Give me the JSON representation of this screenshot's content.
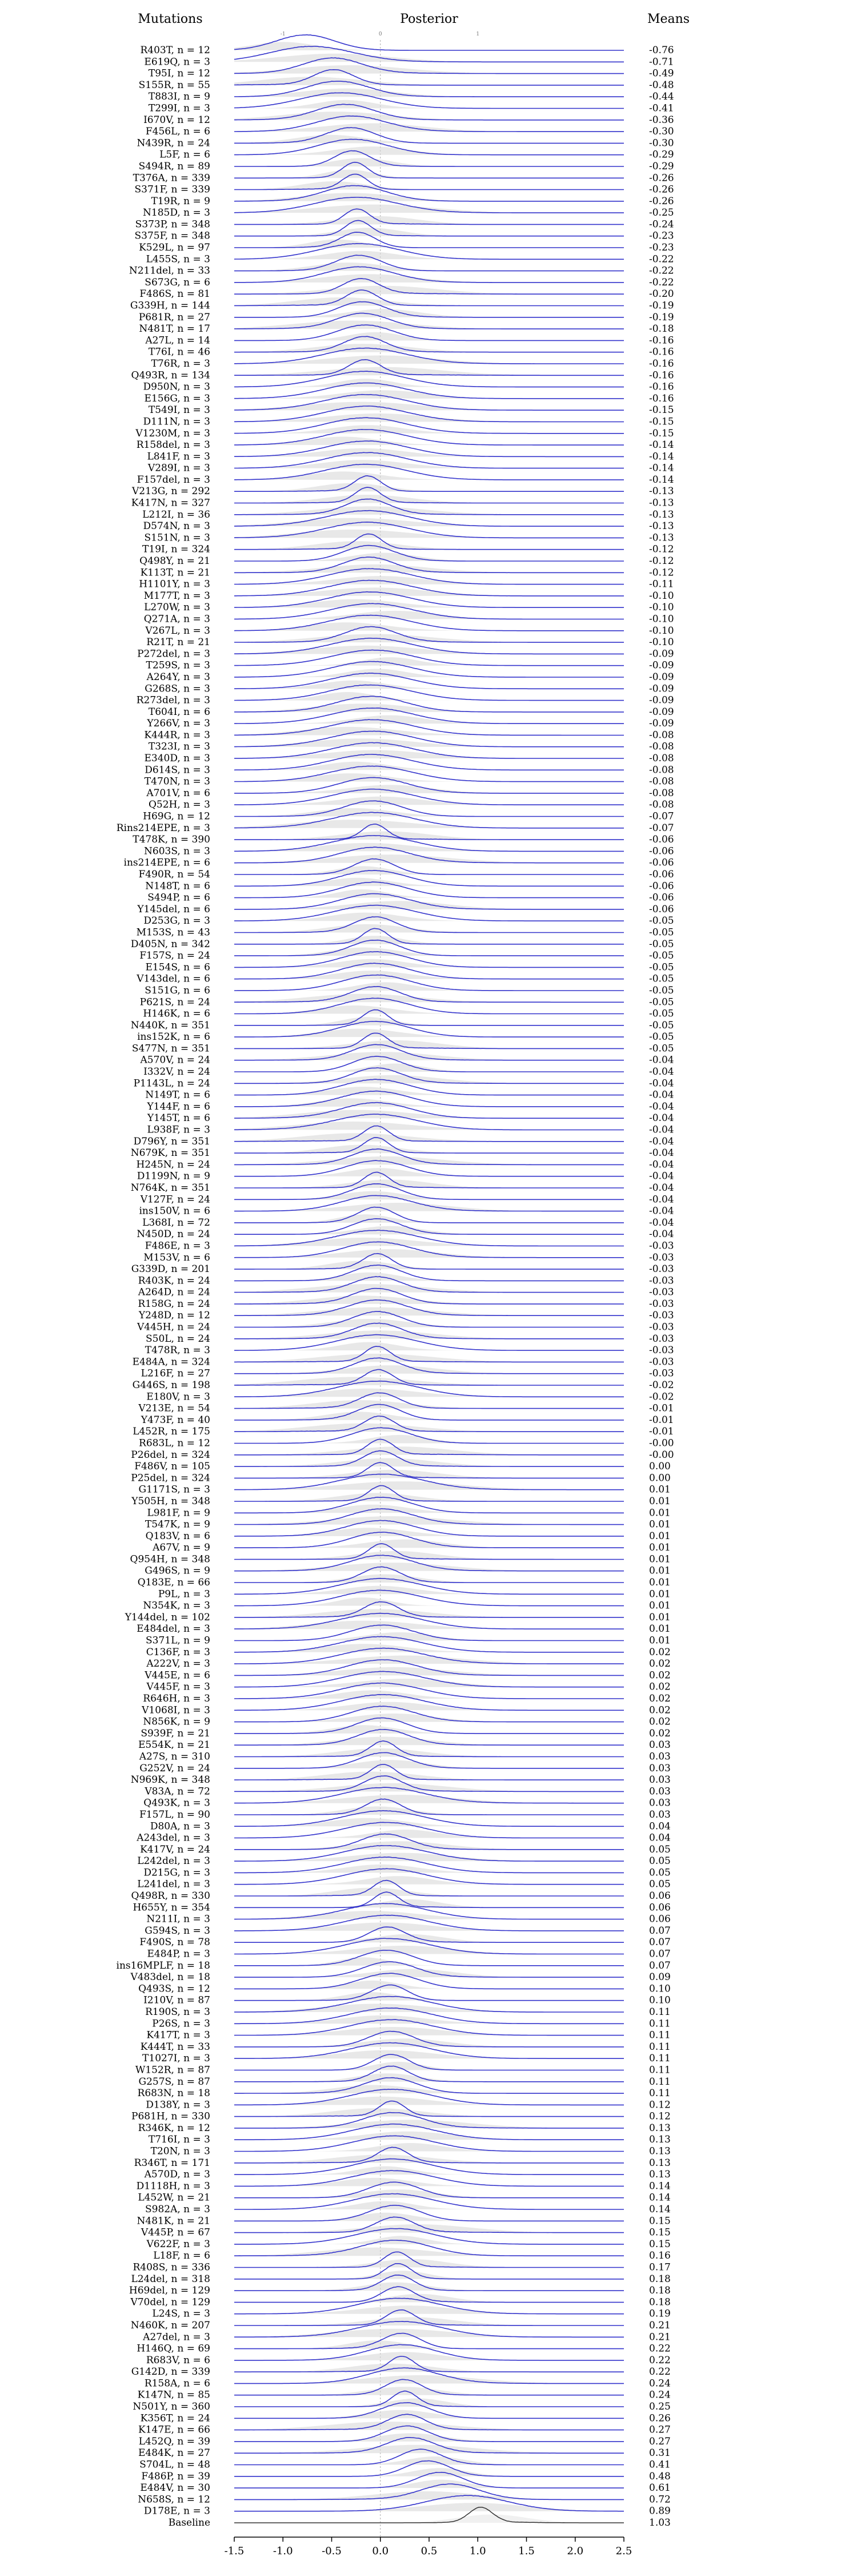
{
  "chart_data": {
    "type": "ridgeline",
    "headers": {
      "left": "Mutations",
      "center": "Posterior",
      "right": "Means"
    },
    "x_ticks": [
      "-1.5",
      "-1.0",
      "-0.5",
      "0.0",
      "0.5",
      "1.0",
      "1.5",
      "2.0",
      "2.5"
    ],
    "x_tick_values": [
      -1.5,
      -1.0,
      -0.5,
      0.0,
      0.5,
      1.0,
      1.5,
      2.0,
      2.5
    ],
    "top_ticks": [
      "-1",
      "0",
      "1"
    ],
    "top_tick_values": [
      -1,
      0,
      1
    ],
    "xlim": [
      -1.5,
      2.5
    ],
    "rows": [
      {
        "label": "R403T, n = 12",
        "mean": "-0.76"
      },
      {
        "label": "E619Q, n = 3",
        "mean": "-0.71"
      },
      {
        "label": "T95I, n = 12",
        "mean": "-0.49"
      },
      {
        "label": "S155R, n = 55",
        "mean": "-0.48"
      },
      {
        "label": "T883I, n = 9",
        "mean": "-0.44"
      },
      {
        "label": "T299I, n = 3",
        "mean": "-0.41"
      },
      {
        "label": "I670V, n = 12",
        "mean": "-0.36"
      },
      {
        "label": "F456L, n = 6",
        "mean": "-0.30"
      },
      {
        "label": "N439R, n = 24",
        "mean": "-0.30"
      },
      {
        "label": "L5F, n = 6",
        "mean": "-0.29"
      },
      {
        "label": "S494R, n = 89",
        "mean": "-0.29"
      },
      {
        "label": "T376A, n = 339",
        "mean": "-0.26"
      },
      {
        "label": "S371F, n = 339",
        "mean": "-0.26"
      },
      {
        "label": "T19R, n = 9",
        "mean": "-0.26"
      },
      {
        "label": "N185D, n = 3",
        "mean": "-0.25"
      },
      {
        "label": "S373P, n = 348",
        "mean": "-0.24"
      },
      {
        "label": "S375F, n = 348",
        "mean": "-0.23"
      },
      {
        "label": "K529L, n = 97",
        "mean": "-0.23"
      },
      {
        "label": "L455S, n = 3",
        "mean": "-0.22"
      },
      {
        "label": "N211del, n = 33",
        "mean": "-0.22"
      },
      {
        "label": "S673G, n = 6",
        "mean": "-0.22"
      },
      {
        "label": "F486S, n = 81",
        "mean": "-0.20"
      },
      {
        "label": "G339H, n = 144",
        "mean": "-0.19"
      },
      {
        "label": "P681R, n = 27",
        "mean": "-0.19"
      },
      {
        "label": "N481T, n = 17",
        "mean": "-0.18"
      },
      {
        "label": "A27L, n = 14",
        "mean": "-0.16"
      },
      {
        "label": "T76I, n = 46",
        "mean": "-0.16"
      },
      {
        "label": "T76R, n = 3",
        "mean": "-0.16"
      },
      {
        "label": "Q493R, n = 134",
        "mean": "-0.16"
      },
      {
        "label": "D950N, n = 3",
        "mean": "-0.16"
      },
      {
        "label": "E156G, n = 3",
        "mean": "-0.16"
      },
      {
        "label": "T549I, n = 3",
        "mean": "-0.15"
      },
      {
        "label": "D111N, n = 3",
        "mean": "-0.15"
      },
      {
        "label": "V1230M, n = 3",
        "mean": "-0.15"
      },
      {
        "label": "R158del, n = 3",
        "mean": "-0.14"
      },
      {
        "label": "L841F, n = 3",
        "mean": "-0.14"
      },
      {
        "label": "V289I, n = 3",
        "mean": "-0.14"
      },
      {
        "label": "F157del, n = 3",
        "mean": "-0.14"
      },
      {
        "label": "V213G, n = 292",
        "mean": "-0.13"
      },
      {
        "label": "K417N, n = 327",
        "mean": "-0.13"
      },
      {
        "label": "L212I, n = 36",
        "mean": "-0.13"
      },
      {
        "label": "D574N, n = 3",
        "mean": "-0.13"
      },
      {
        "label": "S151N, n = 3",
        "mean": "-0.13"
      },
      {
        "label": "T19I, n = 324",
        "mean": "-0.12"
      },
      {
        "label": "Q498Y, n = 21",
        "mean": "-0.12"
      },
      {
        "label": "K113T, n = 21",
        "mean": "-0.12"
      },
      {
        "label": "H1101Y, n = 3",
        "mean": "-0.11"
      },
      {
        "label": "M177T, n = 3",
        "mean": "-0.10"
      },
      {
        "label": "L270W, n = 3",
        "mean": "-0.10"
      },
      {
        "label": "Q271A, n = 3",
        "mean": "-0.10"
      },
      {
        "label": "V267L, n = 3",
        "mean": "-0.10"
      },
      {
        "label": "R21T, n = 21",
        "mean": "-0.10"
      },
      {
        "label": "P272del, n = 3",
        "mean": "-0.09"
      },
      {
        "label": "T259S, n = 3",
        "mean": "-0.09"
      },
      {
        "label": "A264Y, n = 3",
        "mean": "-0.09"
      },
      {
        "label": "G268S, n = 3",
        "mean": "-0.09"
      },
      {
        "label": "R273del, n = 3",
        "mean": "-0.09"
      },
      {
        "label": "T604I, n = 6",
        "mean": "-0.09"
      },
      {
        "label": "Y266V, n = 3",
        "mean": "-0.09"
      },
      {
        "label": "K444R, n = 3",
        "mean": "-0.08"
      },
      {
        "label": "T323I, n = 3",
        "mean": "-0.08"
      },
      {
        "label": "E340D, n = 3",
        "mean": "-0.08"
      },
      {
        "label": "D614S, n = 3",
        "mean": "-0.08"
      },
      {
        "label": "T470N, n = 3",
        "mean": "-0.08"
      },
      {
        "label": "A701V, n = 6",
        "mean": "-0.08"
      },
      {
        "label": "Q52H, n = 3",
        "mean": "-0.08"
      },
      {
        "label": "H69G, n = 12",
        "mean": "-0.07"
      },
      {
        "label": "Rins214EPE, n = 3",
        "mean": "-0.07"
      },
      {
        "label": "T478K, n = 390",
        "mean": "-0.06"
      },
      {
        "label": "N603S, n = 3",
        "mean": "-0.06"
      },
      {
        "label": "ins214EPE, n = 6",
        "mean": "-0.06"
      },
      {
        "label": "F490R, n = 54",
        "mean": "-0.06"
      },
      {
        "label": "N148T, n = 6",
        "mean": "-0.06"
      },
      {
        "label": "S494P, n = 6",
        "mean": "-0.06"
      },
      {
        "label": "Y145del, n = 6",
        "mean": "-0.06"
      },
      {
        "label": "D253G, n = 3",
        "mean": "-0.05"
      },
      {
        "label": "M153S, n = 43",
        "mean": "-0.05"
      },
      {
        "label": "D405N, n = 342",
        "mean": "-0.05"
      },
      {
        "label": "F157S, n = 24",
        "mean": "-0.05"
      },
      {
        "label": "E154S, n = 6",
        "mean": "-0.05"
      },
      {
        "label": "V143del, n = 6",
        "mean": "-0.05"
      },
      {
        "label": "S151G, n = 6",
        "mean": "-0.05"
      },
      {
        "label": "P621S, n = 24",
        "mean": "-0.05"
      },
      {
        "label": "H146K, n = 6",
        "mean": "-0.05"
      },
      {
        "label": "N440K, n = 351",
        "mean": "-0.05"
      },
      {
        "label": "ins152K, n = 6",
        "mean": "-0.05"
      },
      {
        "label": "S477N, n = 351",
        "mean": "-0.05"
      },
      {
        "label": "A570V, n = 24",
        "mean": "-0.04"
      },
      {
        "label": "I332V, n = 24",
        "mean": "-0.04"
      },
      {
        "label": "P1143L, n = 24",
        "mean": "-0.04"
      },
      {
        "label": "N149T, n = 6",
        "mean": "-0.04"
      },
      {
        "label": "Y144F, n = 6",
        "mean": "-0.04"
      },
      {
        "label": "Y145T, n = 6",
        "mean": "-0.04"
      },
      {
        "label": "L938F, n = 3",
        "mean": "-0.04"
      },
      {
        "label": "D796Y, n = 351",
        "mean": "-0.04"
      },
      {
        "label": "N679K, n = 351",
        "mean": "-0.04"
      },
      {
        "label": "H245N, n = 24",
        "mean": "-0.04"
      },
      {
        "label": "D1199N, n = 9",
        "mean": "-0.04"
      },
      {
        "label": "N764K, n = 351",
        "mean": "-0.04"
      },
      {
        "label": "V127F, n = 24",
        "mean": "-0.04"
      },
      {
        "label": "ins150V, n = 6",
        "mean": "-0.04"
      },
      {
        "label": "L368I, n = 72",
        "mean": "-0.04"
      },
      {
        "label": "N450D, n = 24",
        "mean": "-0.04"
      },
      {
        "label": "F486E, n = 3",
        "mean": "-0.03"
      },
      {
        "label": "M153V, n = 6",
        "mean": "-0.03"
      },
      {
        "label": "G339D, n = 201",
        "mean": "-0.03"
      },
      {
        "label": "R403K, n = 24",
        "mean": "-0.03"
      },
      {
        "label": "A264D, n = 24",
        "mean": "-0.03"
      },
      {
        "label": "R158G, n = 24",
        "mean": "-0.03"
      },
      {
        "label": "Y248D, n = 12",
        "mean": "-0.03"
      },
      {
        "label": "V445H, n = 24",
        "mean": "-0.03"
      },
      {
        "label": "S50L, n = 24",
        "mean": "-0.03"
      },
      {
        "label": "T478R, n = 3",
        "mean": "-0.03"
      },
      {
        "label": "E484A, n = 324",
        "mean": "-0.03"
      },
      {
        "label": "L216F, n = 27",
        "mean": "-0.03"
      },
      {
        "label": "G446S, n = 198",
        "mean": "-0.02"
      },
      {
        "label": "E180V, n = 3",
        "mean": "-0.02"
      },
      {
        "label": "V213E, n = 54",
        "mean": "-0.01"
      },
      {
        "label": "Y473F, n = 40",
        "mean": "-0.01"
      },
      {
        "label": "L452R, n = 175",
        "mean": "-0.01"
      },
      {
        "label": "R683L, n = 12",
        "mean": "-0.00"
      },
      {
        "label": "P26del, n = 324",
        "mean": "-0.00"
      },
      {
        "label": "F486V, n = 105",
        "mean": "0.00"
      },
      {
        "label": "P25del, n = 324",
        "mean": "0.00"
      },
      {
        "label": "G1171S, n = 3",
        "mean": "0.01"
      },
      {
        "label": "Y505H, n = 348",
        "mean": "0.01"
      },
      {
        "label": "L981F, n = 9",
        "mean": "0.01"
      },
      {
        "label": "T547K, n = 9",
        "mean": "0.01"
      },
      {
        "label": "Q183V, n = 6",
        "mean": "0.01"
      },
      {
        "label": "A67V, n = 9",
        "mean": "0.01"
      },
      {
        "label": "Q954H, n = 348",
        "mean": "0.01"
      },
      {
        "label": "G496S, n = 9",
        "mean": "0.01"
      },
      {
        "label": "Q183E, n = 66",
        "mean": "0.01"
      },
      {
        "label": "P9L, n = 3",
        "mean": "0.01"
      },
      {
        "label": "N354K, n = 3",
        "mean": "0.01"
      },
      {
        "label": "Y144del, n = 102",
        "mean": "0.01"
      },
      {
        "label": "E484del, n = 3",
        "mean": "0.01"
      },
      {
        "label": "S371L, n = 9",
        "mean": "0.01"
      },
      {
        "label": "C136F, n = 3",
        "mean": "0.02"
      },
      {
        "label": "A222V, n = 3",
        "mean": "0.02"
      },
      {
        "label": "V445E, n = 6",
        "mean": "0.02"
      },
      {
        "label": "V445F, n = 3",
        "mean": "0.02"
      },
      {
        "label": "R646H, n = 3",
        "mean": "0.02"
      },
      {
        "label": "V1068I, n = 3",
        "mean": "0.02"
      },
      {
        "label": "N856K, n = 9",
        "mean": "0.02"
      },
      {
        "label": "S939F, n = 21",
        "mean": "0.02"
      },
      {
        "label": "E554K, n = 21",
        "mean": "0.03"
      },
      {
        "label": "A27S, n = 310",
        "mean": "0.03"
      },
      {
        "label": "G252V, n = 24",
        "mean": "0.03"
      },
      {
        "label": "N969K, n = 348",
        "mean": "0.03"
      },
      {
        "label": "V83A, n = 72",
        "mean": "0.03"
      },
      {
        "label": "Q493K, n = 3",
        "mean": "0.03"
      },
      {
        "label": "F157L, n = 90",
        "mean": "0.03"
      },
      {
        "label": "D80A, n = 3",
        "mean": "0.04"
      },
      {
        "label": "A243del, n = 3",
        "mean": "0.04"
      },
      {
        "label": "K417V, n = 24",
        "mean": "0.05"
      },
      {
        "label": "L242del, n = 3",
        "mean": "0.05"
      },
      {
        "label": "D215G, n = 3",
        "mean": "0.05"
      },
      {
        "label": "L241del, n = 3",
        "mean": "0.05"
      },
      {
        "label": "Q498R, n = 330",
        "mean": "0.06"
      },
      {
        "label": "H655Y, n = 354",
        "mean": "0.06"
      },
      {
        "label": "N211I, n = 3",
        "mean": "0.06"
      },
      {
        "label": "G594S, n = 3",
        "mean": "0.07"
      },
      {
        "label": "F490S, n = 78",
        "mean": "0.07"
      },
      {
        "label": "E484P, n = 3",
        "mean": "0.07"
      },
      {
        "label": "ins16MPLF, n = 18",
        "mean": "0.07"
      },
      {
        "label": "V483del, n = 18",
        "mean": "0.09"
      },
      {
        "label": "Q493S, n = 12",
        "mean": "0.10"
      },
      {
        "label": "I210V, n = 87",
        "mean": "0.10"
      },
      {
        "label": "R190S, n = 3",
        "mean": "0.11"
      },
      {
        "label": "P26S, n = 3",
        "mean": "0.11"
      },
      {
        "label": "K417T, n = 3",
        "mean": "0.11"
      },
      {
        "label": "K444T, n = 33",
        "mean": "0.11"
      },
      {
        "label": "T1027I, n = 3",
        "mean": "0.11"
      },
      {
        "label": "W152R, n = 87",
        "mean": "0.11"
      },
      {
        "label": "G257S, n = 87",
        "mean": "0.11"
      },
      {
        "label": "R683N, n = 18",
        "mean": "0.11"
      },
      {
        "label": "D138Y, n = 3",
        "mean": "0.12"
      },
      {
        "label": "P681H, n = 330",
        "mean": "0.12"
      },
      {
        "label": "R346K, n = 12",
        "mean": "0.13"
      },
      {
        "label": "T716I, n = 3",
        "mean": "0.13"
      },
      {
        "label": "T20N, n = 3",
        "mean": "0.13"
      },
      {
        "label": "R346T, n = 171",
        "mean": "0.13"
      },
      {
        "label": "A570D, n = 3",
        "mean": "0.13"
      },
      {
        "label": "D1118H, n = 3",
        "mean": "0.14"
      },
      {
        "label": "L452W, n = 21",
        "mean": "0.14"
      },
      {
        "label": "S982A, n = 3",
        "mean": "0.14"
      },
      {
        "label": "N481K, n = 21",
        "mean": "0.15"
      },
      {
        "label": "V445P, n = 67",
        "mean": "0.15"
      },
      {
        "label": "V622F, n = 3",
        "mean": "0.15"
      },
      {
        "label": "L18F, n = 6",
        "mean": "0.16"
      },
      {
        "label": "R408S, n = 336",
        "mean": "0.17"
      },
      {
        "label": "L24del, n = 318",
        "mean": "0.18"
      },
      {
        "label": "H69del, n = 129",
        "mean": "0.18"
      },
      {
        "label": "V70del, n = 129",
        "mean": "0.18"
      },
      {
        "label": "L24S, n = 3",
        "mean": "0.19"
      },
      {
        "label": "N460K, n = 207",
        "mean": "0.21"
      },
      {
        "label": "A27del, n = 3",
        "mean": "0.21"
      },
      {
        "label": "H146Q, n = 69",
        "mean": "0.22"
      },
      {
        "label": "R683V, n = 6",
        "mean": "0.22"
      },
      {
        "label": "G142D, n = 339",
        "mean": "0.22"
      },
      {
        "label": "R158A, n = 6",
        "mean": "0.24"
      },
      {
        "label": "K147N, n = 85",
        "mean": "0.24"
      },
      {
        "label": "N501Y, n = 360",
        "mean": "0.25"
      },
      {
        "label": "K356T, n = 24",
        "mean": "0.26"
      },
      {
        "label": "K147E, n = 66",
        "mean": "0.27"
      },
      {
        "label": "L452Q, n = 39",
        "mean": "0.27"
      },
      {
        "label": "E484K, n = 27",
        "mean": "0.31"
      },
      {
        "label": "S704L, n = 48",
        "mean": "0.41"
      },
      {
        "label": "F486P, n = 39",
        "mean": "0.48"
      },
      {
        "label": "E484V, n = 30",
        "mean": "0.61"
      },
      {
        "label": "N658S, n = 12",
        "mean": "0.72"
      },
      {
        "label": "D178E, n = 3",
        "mean": "0.89"
      },
      {
        "label": "Baseline",
        "mean": "1.03"
      }
    ]
  }
}
